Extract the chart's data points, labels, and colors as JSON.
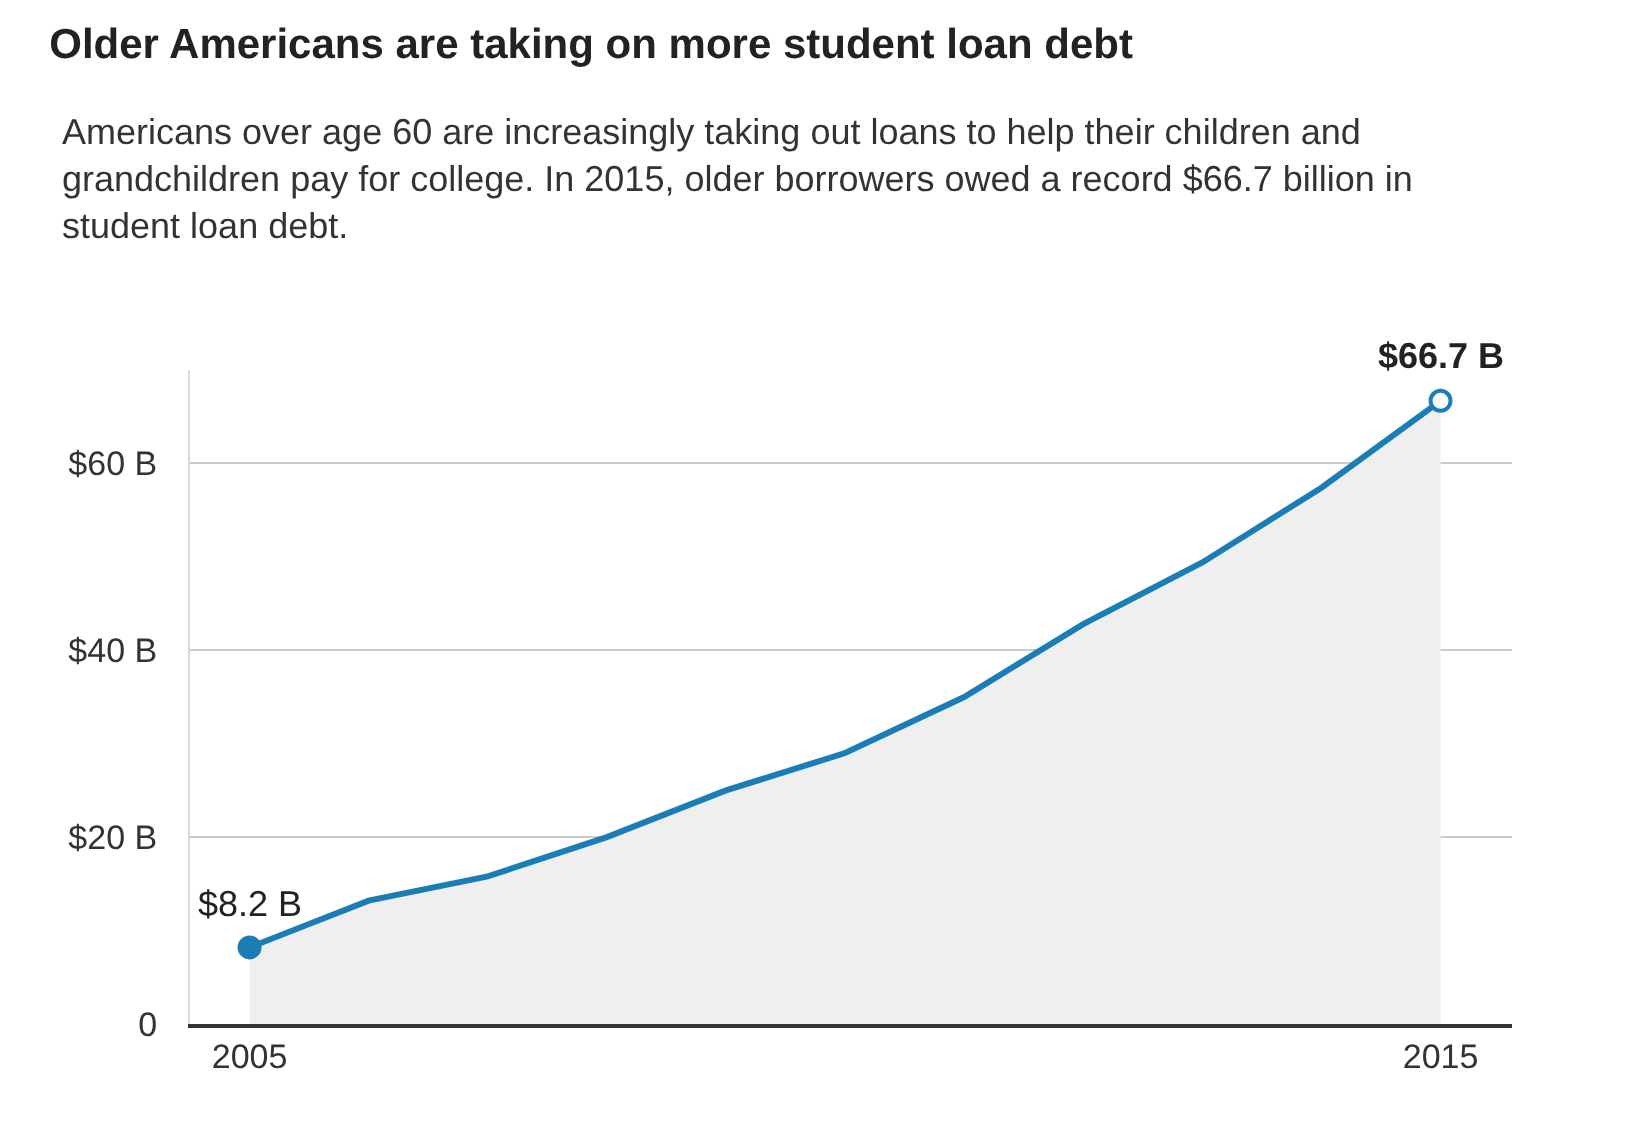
{
  "chart_data": {
    "type": "area",
    "title": "Older Americans are taking on more student loan debt",
    "subtitle": "Americans over age 60 are increasingly taking out loans to help their children and grandchildren pay for college. In 2015, older borrowers owed a record $66.7 billion in student loan debt.",
    "x": [
      2005,
      2006,
      2007,
      2008,
      2009,
      2010,
      2011,
      2012,
      2013,
      2014,
      2015
    ],
    "series": [
      {
        "color": "#1a7db6",
        "values": [
          8.2,
          13.2,
          15.8,
          20,
          25,
          29,
          35,
          42.8,
          49.4,
          57.4,
          66.7
        ]
      }
    ],
    "xlim": [
      2004.5,
      2015.6
    ],
    "xticks": [
      2005,
      2015
    ],
    "ylim": [
      0,
      70
    ],
    "yticks": [
      0,
      {
        "value": 20,
        "label": "$20 B"
      },
      {
        "value": 40,
        "label": "$40 B"
      },
      {
        "value": 60,
        "label": "$60 B"
      }
    ],
    "grid": "y",
    "annotations": [
      {
        "text": "$8.2 B",
        "x": 2005,
        "y": 8.2
      },
      {
        "text": "$66.7 B",
        "x": 2015,
        "y": 66.7
      }
    ]
  }
}
